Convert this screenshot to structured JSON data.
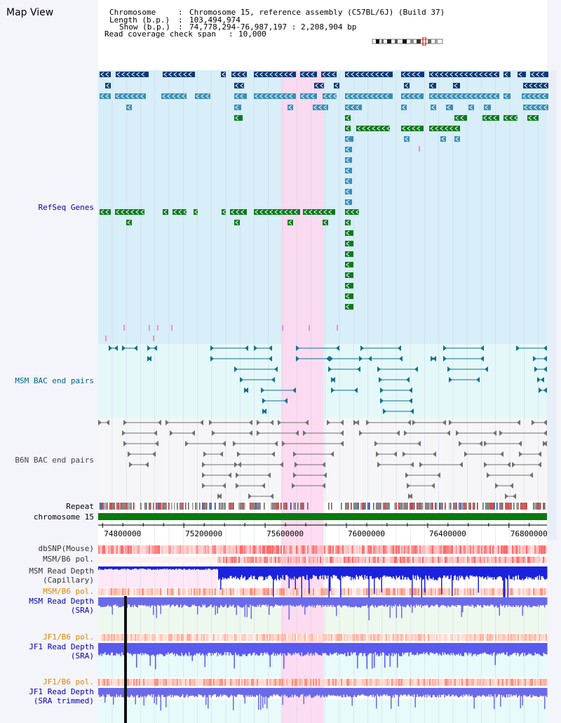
{
  "view": {
    "title": "Map View",
    "chromosome_label": "Chromosome",
    "chromosome_value": "Chromosome 15, reference assembly (C57BL/6J) (Build 37)",
    "length_label": "Length (b.p.)",
    "length_value": "103,494,974",
    "show_label": "Show (b.p.)",
    "show_value": "74,778,294-76,987,197 : 2,208,904 bp",
    "coverage_label": "Read coverage check span",
    "coverage_value": "10,000"
  },
  "range": {
    "start": 74778294,
    "end": 76987197,
    "highlight": [
      75678294,
      75888294
    ]
  },
  "tracks": {
    "refseq": "RefSeq Genes",
    "msm_bac": "MSM BAC end pairs",
    "b6n_bac": "B6N BAC end pairs",
    "repeat": "Repeat",
    "chromosome": "chromosome 15",
    "dbsnp": "dbSNP(Mouse)",
    "msm_b6_pol_1": "MSM/B6 pol.",
    "msm_depth_cap_1": "MSM Read Depth",
    "msm_depth_cap_2": "(Capillary)",
    "msm_b6_pol_2": "MSM/B6 pol.",
    "msm_depth_sra_1": "MSM Read Depth",
    "msm_depth_sra_2": "(SRA)",
    "jf1_b6_pol_1": "JF1/B6 pol.",
    "jf1_depth_sra_1": "JF1 Read Depth",
    "jf1_depth_sra_2": "(SRA)",
    "jf1_b6_pol_2": "JF1/B6 pol.",
    "jf1_depth_trim_1": "JF1 Read Depth",
    "jf1_depth_trim_2": "(SRA trimmed)"
  },
  "axis": {
    "ticks": [
      74800000,
      75200000,
      75600000,
      76000000,
      76400000,
      76800000
    ]
  },
  "colors": {
    "gene_dark": "#0a3a78",
    "gene_mid": "#3a8fb8",
    "gene_green": "#0a7a1e",
    "highlight": "#ffd6f0",
    "refseq_bg": "#d8eef8",
    "bac_bg": "#e4f8fa",
    "b6n_bg": "#f6f6f8"
  }
}
